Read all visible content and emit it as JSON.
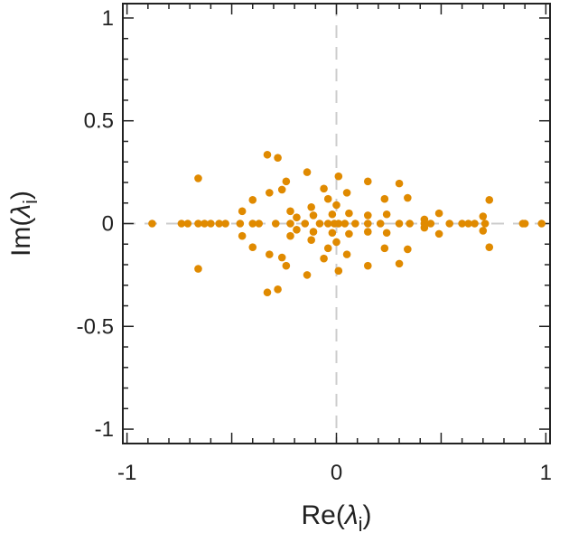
{
  "chart_data": {
    "type": "scatter",
    "title": "",
    "xlabel": "Re(λi)",
    "ylabel": "Im(λi)",
    "xlabel_parts": {
      "prefix": "Re(",
      "symbol": "λ",
      "sub": "i",
      "suffix": ")"
    },
    "ylabel_parts": {
      "prefix": "Im(",
      "symbol": "λ",
      "sub": "i",
      "suffix": ")"
    },
    "xlim": [
      -1.02,
      1.02
    ],
    "ylim": [
      -1.07,
      1.07
    ],
    "xticks": [
      -1,
      0,
      1
    ],
    "xtick_labels": [
      "-1",
      "0",
      "1"
    ],
    "yticks": [
      -1,
      -0.5,
      0,
      0.5,
      1
    ],
    "ytick_labels": [
      "-1",
      "-0.5",
      "0",
      "0.5",
      "1"
    ],
    "grid": false,
    "reference_lines": [
      "x=0 dashed",
      "y=0 dashed"
    ],
    "marker_color": "#E08A00",
    "series": [
      {
        "name": "eigenvalues",
        "points": [
          [
            -0.88,
            0
          ],
          [
            -0.74,
            0
          ],
          [
            -0.71,
            0
          ],
          [
            -0.66,
            0
          ],
          [
            -0.63,
            0
          ],
          [
            -0.6,
            0
          ],
          [
            -0.56,
            0
          ],
          [
            -0.53,
            0
          ],
          [
            -0.46,
            0
          ],
          [
            -0.4,
            0
          ],
          [
            -0.37,
            0
          ],
          [
            -0.29,
            0
          ],
          [
            -0.22,
            0
          ],
          [
            -0.15,
            0
          ],
          [
            -0.08,
            0
          ],
          [
            -0.04,
            0
          ],
          [
            -0.01,
            0
          ],
          [
            0.01,
            0
          ],
          [
            0.04,
            0
          ],
          [
            0.09,
            0
          ],
          [
            0.15,
            0
          ],
          [
            0.21,
            0
          ],
          [
            0.3,
            0
          ],
          [
            0.35,
            0
          ],
          [
            0.42,
            0
          ],
          [
            0.45,
            0
          ],
          [
            0.54,
            0
          ],
          [
            0.6,
            0
          ],
          [
            0.63,
            0
          ],
          [
            0.66,
            0
          ],
          [
            0.71,
            0
          ],
          [
            0.89,
            0
          ],
          [
            0.9,
            0
          ],
          [
            0.98,
            0
          ],
          [
            -0.66,
            0.22
          ],
          [
            -0.66,
            -0.22
          ],
          [
            -0.45,
            0.06
          ],
          [
            -0.45,
            -0.06
          ],
          [
            -0.4,
            0.115
          ],
          [
            -0.4,
            -0.115
          ],
          [
            -0.33,
            0.335
          ],
          [
            -0.33,
            -0.335
          ],
          [
            -0.32,
            0.15
          ],
          [
            -0.32,
            -0.15
          ],
          [
            -0.28,
            0.32
          ],
          [
            -0.28,
            -0.32
          ],
          [
            -0.26,
            0.165
          ],
          [
            -0.26,
            -0.165
          ],
          [
            -0.24,
            0.205
          ],
          [
            -0.24,
            -0.205
          ],
          [
            -0.22,
            0.06
          ],
          [
            -0.22,
            -0.06
          ],
          [
            -0.19,
            0.03
          ],
          [
            -0.19,
            -0.03
          ],
          [
            -0.14,
            0.25
          ],
          [
            -0.14,
            -0.25
          ],
          [
            -0.12,
            0.08
          ],
          [
            -0.12,
            -0.08
          ],
          [
            -0.11,
            0.04
          ],
          [
            -0.11,
            -0.04
          ],
          [
            -0.06,
            0.17
          ],
          [
            -0.06,
            -0.17
          ],
          [
            -0.04,
            0.12
          ],
          [
            -0.04,
            -0.12
          ],
          [
            -0.02,
            0.045
          ],
          [
            -0.02,
            -0.045
          ],
          [
            0.0,
            0.09
          ],
          [
            0.0,
            -0.09
          ],
          [
            0.01,
            0.23
          ],
          [
            0.01,
            -0.23
          ],
          [
            0.05,
            0.15
          ],
          [
            0.05,
            -0.15
          ],
          [
            0.06,
            0.05
          ],
          [
            0.06,
            -0.05
          ],
          [
            0.15,
            0.205
          ],
          [
            0.15,
            -0.205
          ],
          [
            0.15,
            0.04
          ],
          [
            0.15,
            -0.04
          ],
          [
            0.23,
            0.12
          ],
          [
            0.23,
            -0.12
          ],
          [
            0.24,
            0.045
          ],
          [
            0.24,
            -0.045
          ],
          [
            0.3,
            0.195
          ],
          [
            0.3,
            -0.195
          ],
          [
            0.34,
            0.125
          ],
          [
            0.34,
            -0.125
          ],
          [
            0.42,
            0.02
          ],
          [
            0.42,
            -0.02
          ],
          [
            0.49,
            0.05
          ],
          [
            0.49,
            -0.05
          ],
          [
            0.7,
            0.035
          ],
          [
            0.7,
            -0.035
          ],
          [
            0.73,
            0.115
          ],
          [
            0.73,
            -0.115
          ]
        ]
      }
    ]
  }
}
